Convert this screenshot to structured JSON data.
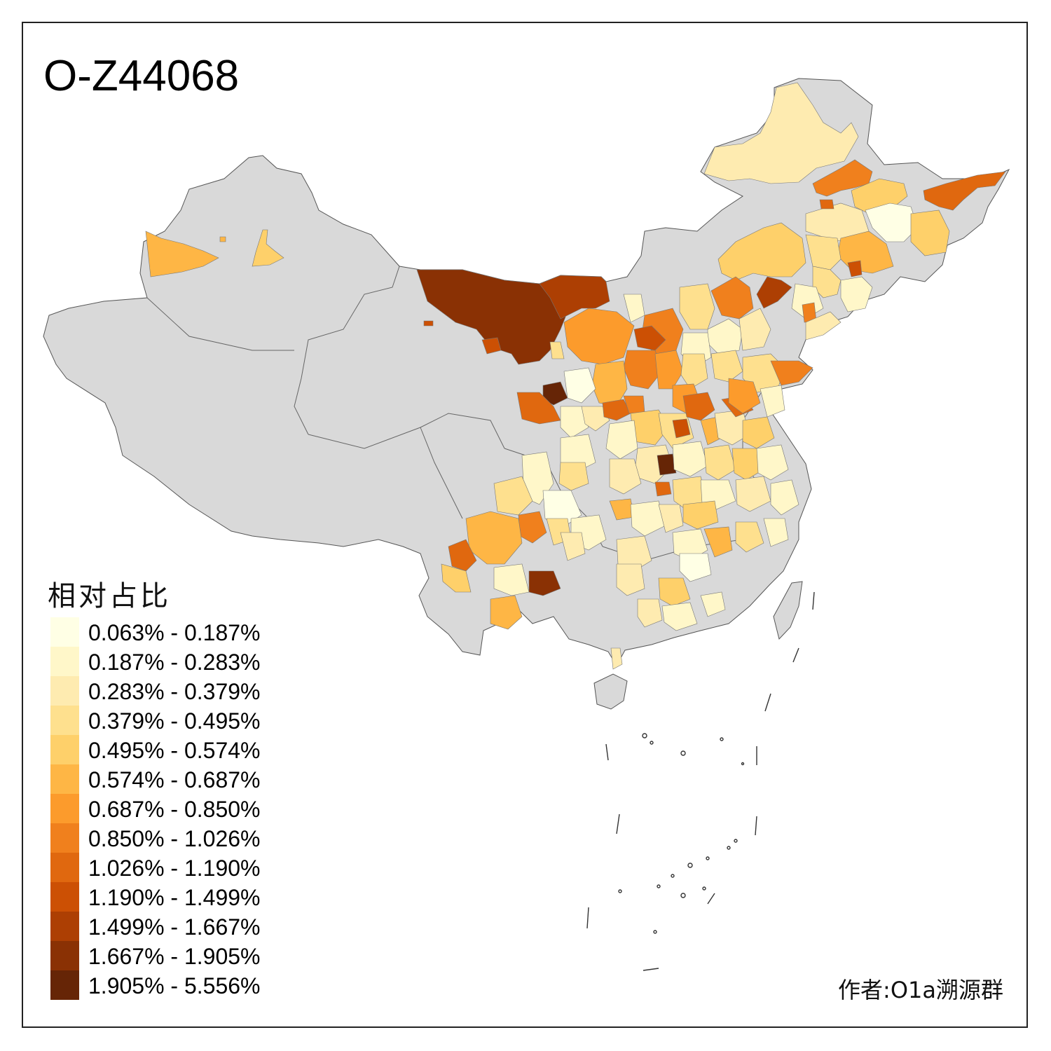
{
  "title": "O-Z44068",
  "legend": {
    "title": "相对占比",
    "bins": [
      {
        "label": "0.063% - 0.187%",
        "color": "#FFFFE5"
      },
      {
        "label": "0.187% - 0.283%",
        "color": "#FFF7C9"
      },
      {
        "label": "0.283% - 0.379%",
        "color": "#FEEBB0"
      },
      {
        "label": "0.379% - 0.495%",
        "color": "#FEE08E"
      },
      {
        "label": "0.495% - 0.574%",
        "color": "#FED06A"
      },
      {
        "label": "0.574% - 0.687%",
        "color": "#FEB645"
      },
      {
        "label": "0.687% - 0.850%",
        "color": "#FC9B2C"
      },
      {
        "label": "0.850% - 1.026%",
        "color": "#F0801D"
      },
      {
        "label": "1.026% - 1.190%",
        "color": "#E0680F"
      },
      {
        "label": "1.190% - 1.499%",
        "color": "#CC5004"
      },
      {
        "label": "1.499% - 1.667%",
        "color": "#AD3F03"
      },
      {
        "label": "1.667% - 1.905%",
        "color": "#8A3104"
      },
      {
        "label": "1.905% - 5.556%",
        "color": "#662506"
      }
    ]
  },
  "author": "作者:O1a溯源群",
  "colors": {
    "no_data": "#D9D9D9",
    "border": "#555555"
  }
}
